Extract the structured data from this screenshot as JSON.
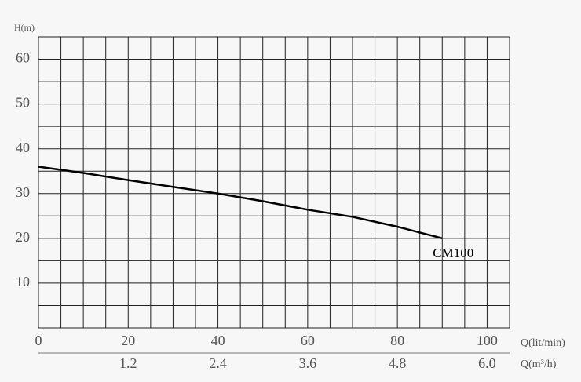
{
  "chart_data": {
    "type": "line",
    "y_label": "H(m)",
    "x_label": "Q(lit/min)",
    "x2_label": "Q(m³/h)",
    "x": [
      0,
      10,
      20,
      30,
      40,
      50,
      60,
      70,
      80,
      90
    ],
    "series": [
      {
        "name": "CM100",
        "color": "#000000",
        "values": [
          36,
          34.6,
          33,
          31.5,
          30,
          28.3,
          26.4,
          24.8,
          22.6,
          20
        ]
      }
    ],
    "xlim": [
      0,
      105
    ],
    "xticks": [
      0,
      20,
      40,
      60,
      80,
      100
    ],
    "x_grid": [
      0,
      5,
      10,
      15,
      20,
      25,
      30,
      35,
      40,
      45,
      50,
      55,
      60,
      65,
      70,
      75,
      80,
      85,
      90,
      95,
      100,
      105
    ],
    "x2lim": [
      0,
      6.3
    ],
    "x2ticks": [
      1.2,
      2.4,
      3.6,
      4.8,
      {
        "value": 6,
        "label": "6.0"
      }
    ],
    "ylim": [
      0,
      65
    ],
    "yticks": [
      10,
      20,
      30,
      40,
      50,
      60
    ],
    "y_grid": [
      0,
      5,
      10,
      15,
      20,
      25,
      30,
      35,
      40,
      45,
      50,
      55,
      60,
      65
    ],
    "grid": true
  }
}
